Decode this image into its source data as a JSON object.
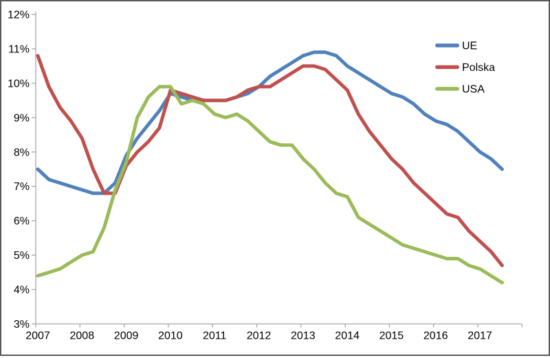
{
  "chart_data": {
    "type": "line",
    "title": "",
    "legend_position": "top-right",
    "grid": false,
    "ylim": [
      3,
      12
    ],
    "y_tick_step": 1,
    "y_tick_labels": [
      "12%",
      "11%",
      "10%",
      "9%",
      "8%",
      "7%",
      "6%",
      "5%",
      "4%",
      "3%"
    ],
    "x_tick_labels": [
      "2007",
      "2008",
      "2009",
      "2010",
      "2011",
      "2012",
      "2013",
      "2014",
      "2015",
      "2016",
      "2017"
    ],
    "x": [
      "2007 Q1",
      "2007 Q2",
      "2007 Q3",
      "2007 Q4",
      "2008 Q1",
      "2008 Q2",
      "2008 Q3",
      "2008 Q4",
      "2009 Q1",
      "2009 Q2",
      "2009 Q3",
      "2009 Q4",
      "2010 Q1",
      "2010 Q2",
      "2010 Q3",
      "2010 Q4",
      "2011 Q1",
      "2011 Q2",
      "2011 Q3",
      "2011 Q4",
      "2012 Q1",
      "2012 Q2",
      "2012 Q3",
      "2012 Q4",
      "2013 Q1",
      "2013 Q2",
      "2013 Q3",
      "2013 Q4",
      "2014 Q1",
      "2014 Q2",
      "2014 Q3",
      "2014 Q4",
      "2015 Q1",
      "2015 Q2",
      "2015 Q3",
      "2015 Q4",
      "2016 Q1",
      "2016 Q2",
      "2016 Q3",
      "2016 Q4",
      "2017 Q1",
      "2017 Q2",
      "2017 Q3"
    ],
    "series": [
      {
        "name": "UE",
        "color": "#4F81BD",
        "values": [
          7.5,
          7.2,
          7.1,
          7.0,
          6.9,
          6.8,
          6.8,
          7.1,
          7.9,
          8.4,
          8.8,
          9.2,
          9.7,
          9.6,
          9.5,
          9.5,
          9.5,
          9.5,
          9.6,
          9.7,
          9.9,
          10.2,
          10.4,
          10.6,
          10.8,
          10.9,
          10.9,
          10.8,
          10.5,
          10.3,
          10.1,
          9.9,
          9.7,
          9.6,
          9.4,
          9.1,
          8.9,
          8.8,
          8.6,
          8.3,
          8.0,
          7.8,
          7.5
        ]
      },
      {
        "name": "Polska",
        "color": "#C0504D",
        "values": [
          10.8,
          9.9,
          9.3,
          8.9,
          8.4,
          7.5,
          6.8,
          6.8,
          7.6,
          8.0,
          8.3,
          8.7,
          9.8,
          9.7,
          9.6,
          9.5,
          9.5,
          9.5,
          9.6,
          9.8,
          9.9,
          9.9,
          10.1,
          10.3,
          10.5,
          10.5,
          10.4,
          10.1,
          9.8,
          9.1,
          8.6,
          8.2,
          7.8,
          7.5,
          7.1,
          6.8,
          6.5,
          6.2,
          6.1,
          5.7,
          5.4,
          5.1,
          4.7
        ]
      },
      {
        "name": "USA",
        "color": "#9BBB59",
        "values": [
          4.4,
          4.5,
          4.6,
          4.8,
          5.0,
          5.1,
          5.8,
          6.9,
          7.7,
          9.0,
          9.6,
          9.9,
          9.9,
          9.4,
          9.5,
          9.4,
          9.1,
          9.0,
          9.1,
          8.9,
          8.6,
          8.3,
          8.2,
          8.2,
          7.8,
          7.5,
          7.1,
          6.8,
          6.7,
          6.1,
          5.9,
          5.7,
          5.5,
          5.3,
          5.2,
          5.1,
          5.0,
          4.9,
          4.9,
          4.7,
          4.6,
          4.4,
          4.2
        ]
      }
    ],
    "colors": {
      "axis": "#A6A6A6",
      "tick_text": "#000000",
      "background": "#FFFFFF",
      "frame": "#595959"
    }
  }
}
